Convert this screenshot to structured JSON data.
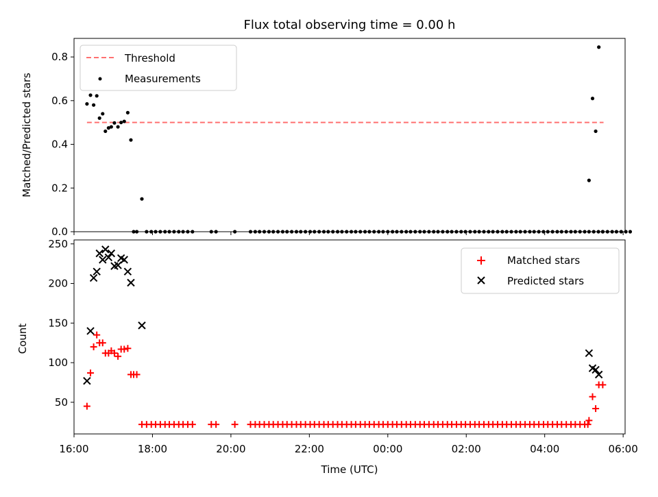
{
  "chart_data": [
    {
      "type": "scatter",
      "title": "Flux total observing time = 0.00 h",
      "xlabel": "",
      "ylabel": "Matched/Predicted stars",
      "xlim": [
        16.0,
        30.05
      ],
      "ylim": [
        0.0,
        0.885
      ],
      "yticks": [
        "0.0",
        "0.2",
        "0.4",
        "0.6",
        "0.8"
      ],
      "ytick_values": [
        0.0,
        0.2,
        0.4,
        0.6,
        0.8
      ],
      "legend_position": "upper-left",
      "threshold": {
        "name": "Threshold",
        "value": 0.5,
        "x_range": [
          16.33,
          29.5
        ],
        "color": "#ff7070"
      },
      "series": [
        {
          "name": "Measurements",
          "color": "#000000",
          "marker": "dot",
          "points": [
            [
              16.33,
              0.585
            ],
            [
              16.42,
              0.625
            ],
            [
              16.5,
              0.58
            ],
            [
              16.58,
              0.622
            ],
            [
              16.65,
              0.52
            ],
            [
              16.73,
              0.54
            ],
            [
              16.8,
              0.46
            ],
            [
              16.88,
              0.475
            ],
            [
              16.95,
              0.48
            ],
            [
              17.03,
              0.498
            ],
            [
              17.12,
              0.48
            ],
            [
              17.2,
              0.5
            ],
            [
              17.28,
              0.505
            ],
            [
              17.37,
              0.545
            ],
            [
              17.45,
              0.42
            ],
            [
              17.52,
              0.0
            ],
            [
              17.6,
              0.0
            ],
            [
              17.73,
              0.15
            ],
            [
              17.85,
              0.0
            ],
            [
              17.97,
              0.0
            ],
            [
              18.08,
              0.0
            ],
            [
              18.2,
              0.0
            ],
            [
              18.32,
              0.0
            ],
            [
              18.43,
              0.0
            ],
            [
              18.55,
              0.0
            ],
            [
              18.67,
              0.0
            ],
            [
              18.78,
              0.0
            ],
            [
              18.9,
              0.0
            ],
            [
              19.02,
              0.0
            ],
            [
              19.5,
              0.0
            ],
            [
              19.62,
              0.0
            ],
            [
              20.1,
              0.0
            ],
            [
              20.5,
              0.0
            ],
            [
              20.62,
              0.0
            ],
            [
              20.73,
              0.0
            ],
            [
              20.85,
              0.0
            ],
            [
              20.97,
              0.0
            ],
            [
              21.08,
              0.0
            ],
            [
              21.2,
              0.0
            ],
            [
              21.32,
              0.0
            ],
            [
              21.43,
              0.0
            ],
            [
              21.55,
              0.0
            ],
            [
              21.67,
              0.0
            ],
            [
              21.78,
              0.0
            ],
            [
              21.9,
              0.0
            ],
            [
              22.02,
              0.0
            ],
            [
              22.13,
              0.0
            ],
            [
              22.25,
              0.0
            ],
            [
              22.37,
              0.0
            ],
            [
              22.48,
              0.0
            ],
            [
              22.6,
              0.0
            ],
            [
              22.72,
              0.0
            ],
            [
              22.83,
              0.0
            ],
            [
              22.95,
              0.0
            ],
            [
              23.07,
              0.0
            ],
            [
              23.18,
              0.0
            ],
            [
              23.3,
              0.0
            ],
            [
              23.42,
              0.0
            ],
            [
              23.53,
              0.0
            ],
            [
              23.65,
              0.0
            ],
            [
              23.77,
              0.0
            ],
            [
              23.88,
              0.0
            ],
            [
              24.0,
              0.0
            ],
            [
              24.12,
              0.0
            ],
            [
              24.23,
              0.0
            ],
            [
              24.35,
              0.0
            ],
            [
              24.47,
              0.0
            ],
            [
              24.58,
              0.0
            ],
            [
              24.7,
              0.0
            ],
            [
              24.82,
              0.0
            ],
            [
              24.93,
              0.0
            ],
            [
              25.05,
              0.0
            ],
            [
              25.17,
              0.0
            ],
            [
              25.28,
              0.0
            ],
            [
              25.4,
              0.0
            ],
            [
              25.52,
              0.0
            ],
            [
              25.63,
              0.0
            ],
            [
              25.75,
              0.0
            ],
            [
              25.87,
              0.0
            ],
            [
              25.98,
              0.0
            ],
            [
              26.1,
              0.0
            ],
            [
              26.22,
              0.0
            ],
            [
              26.33,
              0.0
            ],
            [
              26.45,
              0.0
            ],
            [
              26.57,
              0.0
            ],
            [
              26.68,
              0.0
            ],
            [
              26.8,
              0.0
            ],
            [
              26.92,
              0.0
            ],
            [
              27.03,
              0.0
            ],
            [
              27.15,
              0.0
            ],
            [
              27.27,
              0.0
            ],
            [
              27.38,
              0.0
            ],
            [
              27.5,
              0.0
            ],
            [
              27.62,
              0.0
            ],
            [
              27.73,
              0.0
            ],
            [
              27.85,
              0.0
            ],
            [
              27.97,
              0.0
            ],
            [
              28.08,
              0.0
            ],
            [
              28.2,
              0.0
            ],
            [
              28.32,
              0.0
            ],
            [
              28.43,
              0.0
            ],
            [
              28.55,
              0.0
            ],
            [
              28.67,
              0.0
            ],
            [
              28.78,
              0.0
            ],
            [
              28.9,
              0.0
            ],
            [
              29.02,
              0.0
            ],
            [
              29.13,
              0.0
            ],
            [
              29.25,
              0.0
            ],
            [
              29.37,
              0.0
            ],
            [
              29.48,
              0.0
            ],
            [
              29.6,
              0.0
            ],
            [
              29.72,
              0.0
            ],
            [
              29.83,
              0.0
            ],
            [
              29.95,
              0.0
            ],
            [
              30.07,
              0.0
            ],
            [
              30.18,
              0.0
            ],
            [
              29.13,
              0.235
            ],
            [
              29.22,
              0.61
            ],
            [
              29.3,
              0.46
            ],
            [
              29.38,
              0.845
            ],
            [
              29.48,
              0.0
            ]
          ]
        }
      ]
    },
    {
      "type": "scatter",
      "title": "",
      "xlabel": "Time (UTC)",
      "ylabel": "Count",
      "xlim": [
        16.0,
        30.05
      ],
      "ylim": [
        10,
        255
      ],
      "xticks": [
        "16:00",
        "18:00",
        "20:00",
        "22:00",
        "00:00",
        "02:00",
        "04:00",
        "06:00"
      ],
      "xtick_values": [
        16,
        18,
        20,
        22,
        24,
        26,
        28,
        30
      ],
      "yticks": [
        "50",
        "100",
        "150",
        "200",
        "250"
      ],
      "ytick_values": [
        50,
        100,
        150,
        200,
        250
      ],
      "legend_position": "upper-right",
      "series": [
        {
          "name": "Matched stars",
          "color": "#ff0000",
          "marker": "plus",
          "points": [
            [
              16.33,
              45
            ],
            [
              16.42,
              87
            ],
            [
              16.5,
              120
            ],
            [
              16.58,
              135
            ],
            [
              16.65,
              125
            ],
            [
              16.73,
              125
            ],
            [
              16.8,
              112
            ],
            [
              16.88,
              112
            ],
            [
              16.95,
              115
            ],
            [
              17.03,
              112
            ],
            [
              17.12,
              108
            ],
            [
              17.2,
              117
            ],
            [
              17.28,
              117
            ],
            [
              17.37,
              118
            ],
            [
              17.45,
              85
            ],
            [
              17.52,
              85
            ],
            [
              17.6,
              85
            ],
            [
              17.73,
              22
            ],
            [
              17.85,
              22
            ],
            [
              17.97,
              22
            ],
            [
              18.08,
              22
            ],
            [
              18.2,
              22
            ],
            [
              18.32,
              22
            ],
            [
              18.43,
              22
            ],
            [
              18.55,
              22
            ],
            [
              18.67,
              22
            ],
            [
              18.78,
              22
            ],
            [
              18.9,
              22
            ],
            [
              19.02,
              22
            ],
            [
              19.5,
              22
            ],
            [
              19.62,
              22
            ],
            [
              20.1,
              22
            ],
            [
              20.5,
              22
            ],
            [
              20.62,
              22
            ],
            [
              20.73,
              22
            ],
            [
              20.85,
              22
            ],
            [
              20.97,
              22
            ],
            [
              21.08,
              22
            ],
            [
              21.2,
              22
            ],
            [
              21.32,
              22
            ],
            [
              21.43,
              22
            ],
            [
              21.55,
              22
            ],
            [
              21.67,
              22
            ],
            [
              21.78,
              22
            ],
            [
              21.9,
              22
            ],
            [
              22.02,
              22
            ],
            [
              22.13,
              22
            ],
            [
              22.25,
              22
            ],
            [
              22.37,
              22
            ],
            [
              22.48,
              22
            ],
            [
              22.6,
              22
            ],
            [
              22.72,
              22
            ],
            [
              22.83,
              22
            ],
            [
              22.95,
              22
            ],
            [
              23.07,
              22
            ],
            [
              23.18,
              22
            ],
            [
              23.3,
              22
            ],
            [
              23.42,
              22
            ],
            [
              23.53,
              22
            ],
            [
              23.65,
              22
            ],
            [
              23.77,
              22
            ],
            [
              23.88,
              22
            ],
            [
              24.0,
              22
            ],
            [
              24.12,
              22
            ],
            [
              24.23,
              22
            ],
            [
              24.35,
              22
            ],
            [
              24.47,
              22
            ],
            [
              24.58,
              22
            ],
            [
              24.7,
              22
            ],
            [
              24.82,
              22
            ],
            [
              24.93,
              22
            ],
            [
              25.05,
              22
            ],
            [
              25.17,
              22
            ],
            [
              25.28,
              22
            ],
            [
              25.4,
              22
            ],
            [
              25.52,
              22
            ],
            [
              25.63,
              22
            ],
            [
              25.75,
              22
            ],
            [
              25.87,
              22
            ],
            [
              25.98,
              22
            ],
            [
              26.1,
              22
            ],
            [
              26.22,
              22
            ],
            [
              26.33,
              22
            ],
            [
              26.45,
              22
            ],
            [
              26.57,
              22
            ],
            [
              26.68,
              22
            ],
            [
              26.8,
              22
            ],
            [
              26.92,
              22
            ],
            [
              27.03,
              22
            ],
            [
              27.15,
              22
            ],
            [
              27.27,
              22
            ],
            [
              27.38,
              22
            ],
            [
              27.5,
              22
            ],
            [
              27.62,
              22
            ],
            [
              27.73,
              22
            ],
            [
              27.85,
              22
            ],
            [
              27.97,
              22
            ],
            [
              28.08,
              22
            ],
            [
              28.2,
              22
            ],
            [
              28.32,
              22
            ],
            [
              28.43,
              22
            ],
            [
              28.55,
              22
            ],
            [
              28.67,
              22
            ],
            [
              28.78,
              22
            ],
            [
              28.9,
              22
            ],
            [
              29.02,
              22
            ],
            [
              29.1,
              22
            ],
            [
              29.13,
              27
            ],
            [
              29.22,
              57
            ],
            [
              29.3,
              42
            ],
            [
              29.38,
              72
            ],
            [
              29.48,
              72
            ]
          ]
        },
        {
          "name": "Predicted stars",
          "color": "#000000",
          "marker": "x",
          "points": [
            [
              16.33,
              77
            ],
            [
              16.42,
              140
            ],
            [
              16.5,
              207
            ],
            [
              16.58,
              215
            ],
            [
              16.65,
              238
            ],
            [
              16.73,
              230
            ],
            [
              16.8,
              243
            ],
            [
              16.88,
              233
            ],
            [
              16.95,
              238
            ],
            [
              17.03,
              222
            ],
            [
              17.12,
              223
            ],
            [
              17.2,
              232
            ],
            [
              17.28,
              230
            ],
            [
              17.37,
              215
            ],
            [
              17.45,
              201
            ],
            [
              17.73,
              147
            ],
            [
              29.13,
              112
            ],
            [
              29.22,
              93
            ],
            [
              29.3,
              91
            ],
            [
              29.38,
              85
            ]
          ]
        }
      ]
    }
  ]
}
